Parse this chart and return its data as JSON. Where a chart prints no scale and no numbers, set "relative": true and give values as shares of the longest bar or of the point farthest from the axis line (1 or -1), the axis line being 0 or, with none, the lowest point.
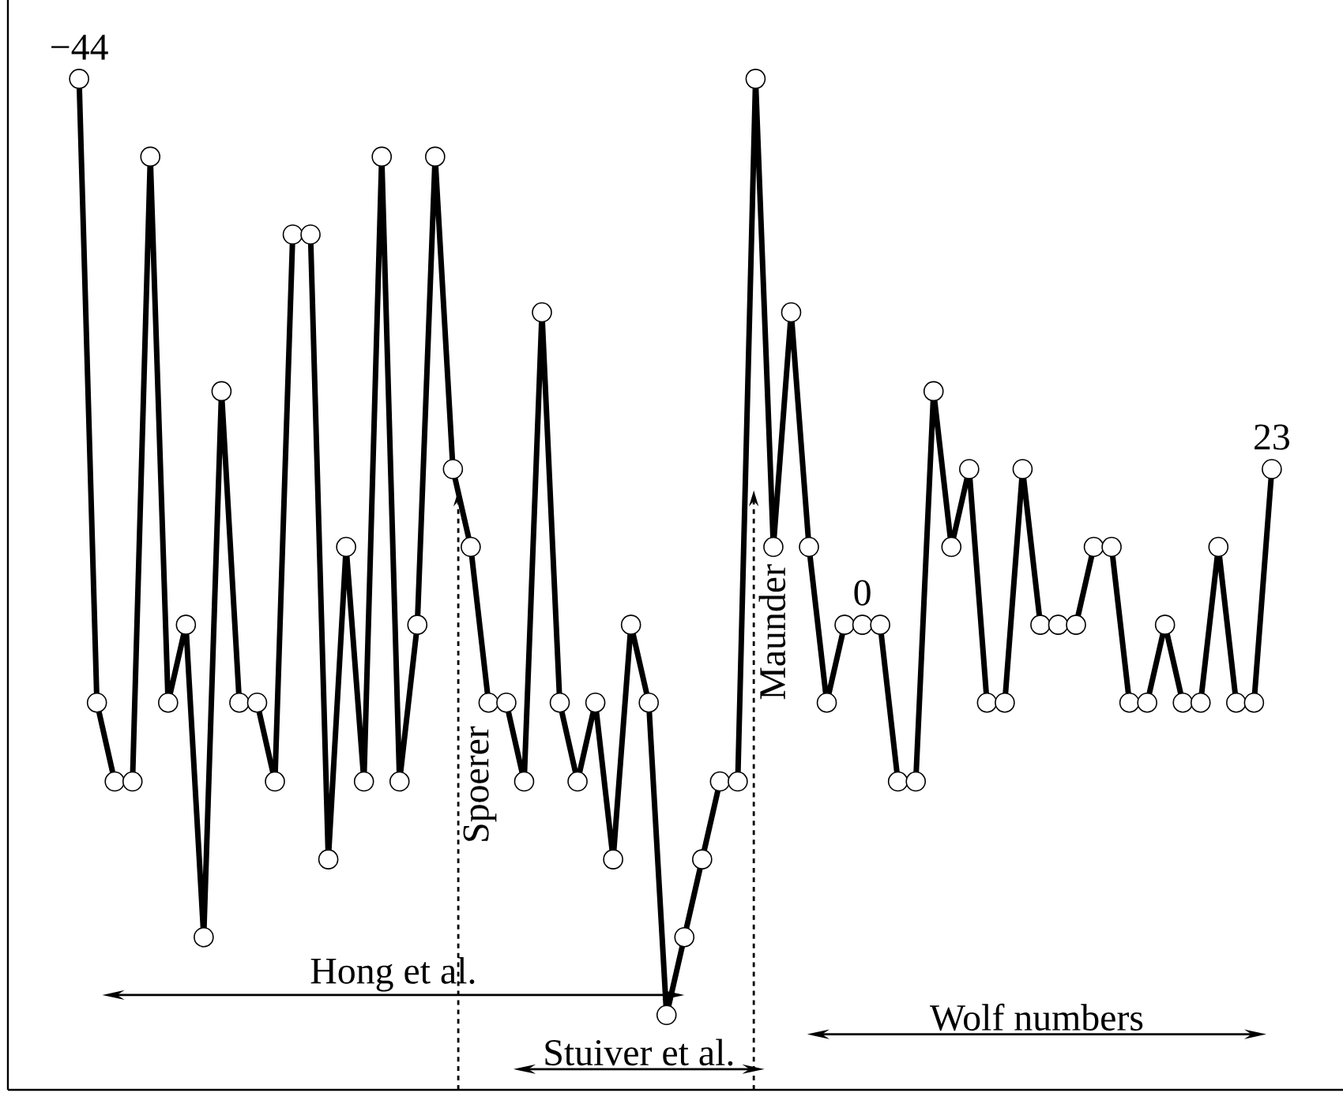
{
  "chart_data": {
    "type": "line",
    "relative": true,
    "categories": [
      "−44",
      null,
      null,
      null,
      null,
      null,
      null,
      null,
      null,
      null,
      null,
      null,
      null,
      null,
      null,
      null,
      null,
      null,
      null,
      null,
      null,
      null,
      null,
      null,
      null,
      null,
      null,
      null,
      null,
      null,
      null,
      null,
      null,
      null,
      null,
      null,
      null,
      null,
      null,
      null,
      null,
      null,
      null,
      null,
      "0",
      null,
      null,
      null,
      null,
      null,
      null,
      null,
      null,
      null,
      null,
      null,
      null,
      null,
      null,
      null,
      null,
      null,
      null,
      null,
      null,
      null,
      null,
      "23"
    ],
    "values": [
      1.0,
      0.383,
      0.305,
      0.305,
      0.923,
      0.383,
      0.46,
      0.151,
      0.691,
      0.383,
      0.383,
      0.305,
      0.846,
      0.846,
      0.228,
      0.537,
      0.305,
      0.923,
      0.305,
      0.46,
      0.923,
      0.614,
      0.537,
      0.383,
      0.383,
      0.305,
      0.769,
      0.383,
      0.305,
      0.383,
      0.228,
      0.46,
      0.383,
      0.074,
      0.151,
      0.228,
      0.305,
      0.305,
      1.0,
      0.537,
      0.769,
      0.537,
      0.383,
      0.46,
      0.46,
      0.46,
      0.305,
      0.305,
      0.691,
      0.537,
      0.614,
      0.383,
      0.383,
      0.614,
      0.46,
      0.46,
      0.46,
      0.537,
      0.537,
      0.383,
      0.383,
      0.46,
      0.383,
      0.383,
      0.537,
      0.383,
      0.383,
      0.614
    ],
    "color": "#000000",
    "marker": "circle",
    "line_style": "solid",
    "annotations": [
      "Hong et al.",
      "Stuiver et al.",
      "Wolf numbers",
      "Spoerer",
      "Maunder"
    ]
  }
}
